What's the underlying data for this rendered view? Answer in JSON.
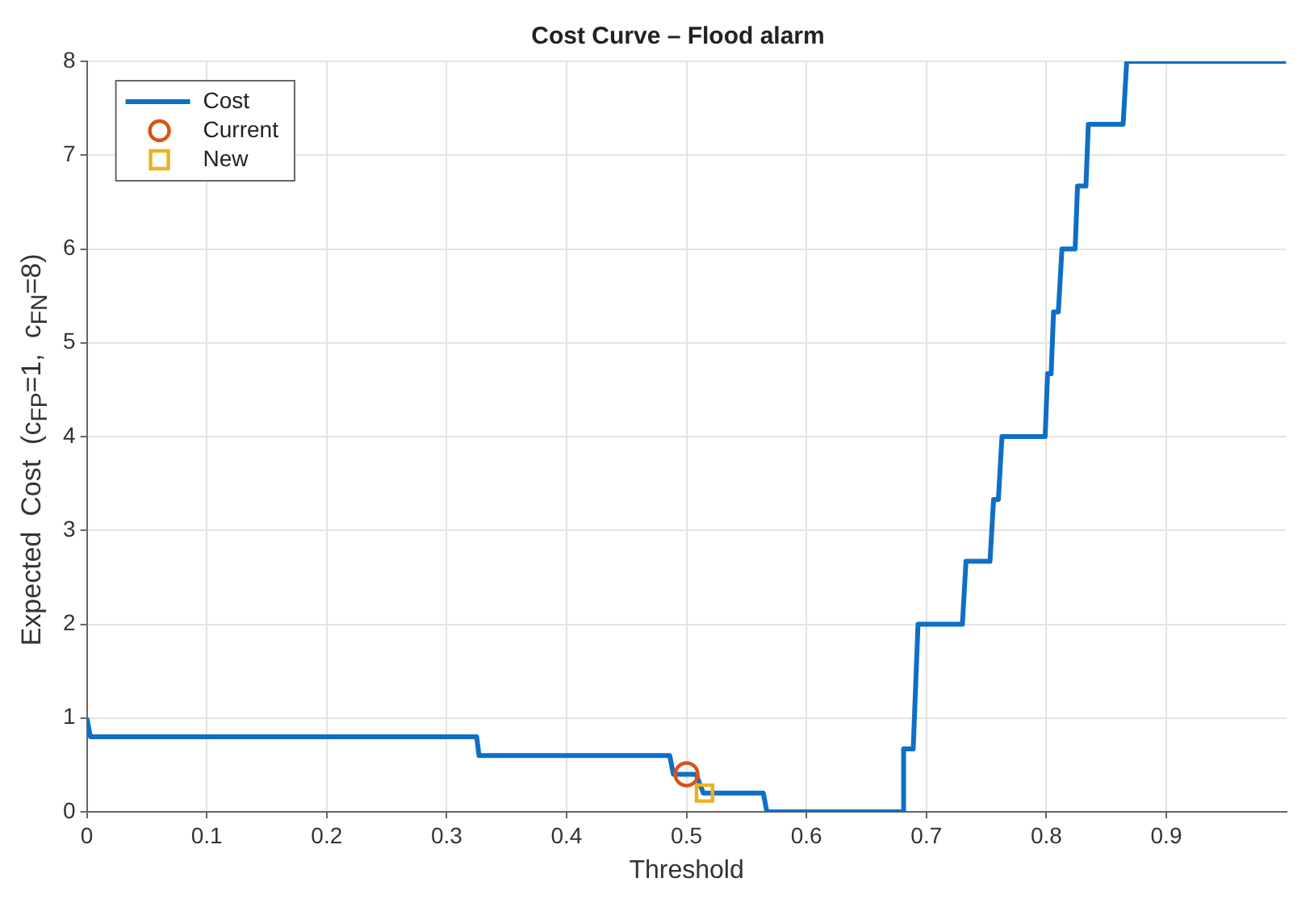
{
  "chart_data": {
    "type": "line",
    "title": "Cost Curve – Flood alarm",
    "xlabel": "Threshold",
    "ylabel": "Expected  Cost  (c$_{FP}$=1,  c$_{FN}$=8)",
    "xlim": [
      0,
      1
    ],
    "ylim": [
      0,
      8
    ],
    "xticks": [
      0,
      0.1,
      0.2,
      0.3,
      0.4,
      0.5,
      0.6,
      0.7,
      0.8,
      0.9
    ],
    "yticks": [
      0,
      1,
      2,
      3,
      4,
      5,
      6,
      7,
      8
    ],
    "grid": true,
    "legend": "top left",
    "line_style": "solid",
    "series": [
      {
        "name": "Cost",
        "type": "line",
        "marker": "none",
        "color": "#0f6fc6",
        "x": [
          0,
          0.003,
          0.325,
          0.327,
          0.486,
          0.489,
          0.508,
          0.514,
          0.564,
          0.567,
          0.68,
          0.681,
          0.689,
          0.693,
          0.73,
          0.733,
          0.753,
          0.756,
          0.76,
          0.763,
          0.799,
          0.801,
          0.804,
          0.806,
          0.81,
          0.813,
          0.824,
          0.826,
          0.833,
          0.835,
          0.864,
          0.867,
          1
        ],
        "values": [
          1,
          0.8,
          0.8,
          0.6,
          0.6,
          0.4,
          0.4,
          0.2,
          0.2,
          0,
          0,
          0.67,
          0.67,
          2,
          2,
          2.67,
          2.67,
          3.33,
          3.33,
          4,
          4,
          4.67,
          4.67,
          5.33,
          5.33,
          6,
          6,
          6.67,
          6.67,
          7.33,
          7.33,
          8,
          8
        ]
      },
      {
        "name": "Current",
        "type": "scatter",
        "marker": "circle",
        "color": "#d95319",
        "x": [
          0.5
        ],
        "values": [
          0.4
        ]
      },
      {
        "name": "New",
        "type": "scatter",
        "marker": "square",
        "color": "#edb120",
        "x": [
          0.515
        ],
        "values": [
          0.2
        ]
      }
    ]
  }
}
